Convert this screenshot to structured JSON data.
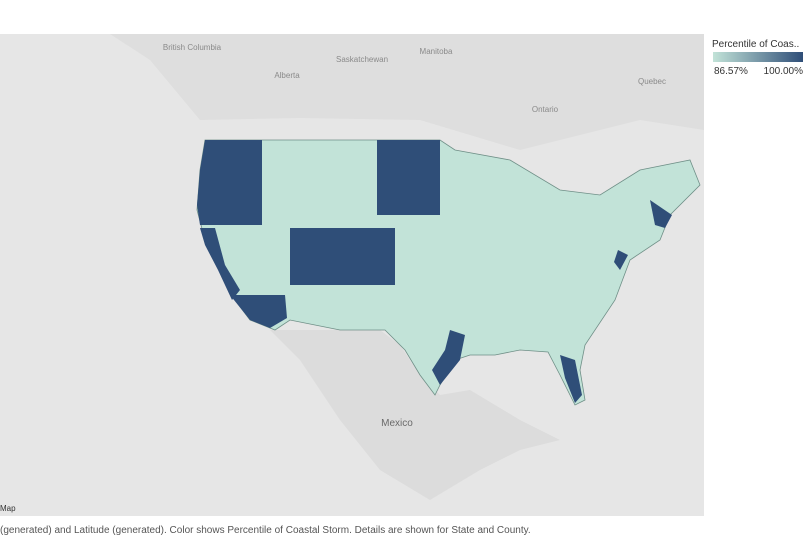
{
  "legend": {
    "title": "Percentile of Coas..",
    "min_label": "86.57%",
    "max_label": "100.00%"
  },
  "map_labels": [
    "British Columbia",
    "Alberta",
    "Saskatchewan",
    "Manitoba",
    "Ontario",
    "Quebec",
    "Mexico"
  ],
  "map_tab": "Map",
  "caption": "(generated) and Latitude (generated).  Color shows Percentile of Coastal Storm.  Details are shown for State and County."
}
